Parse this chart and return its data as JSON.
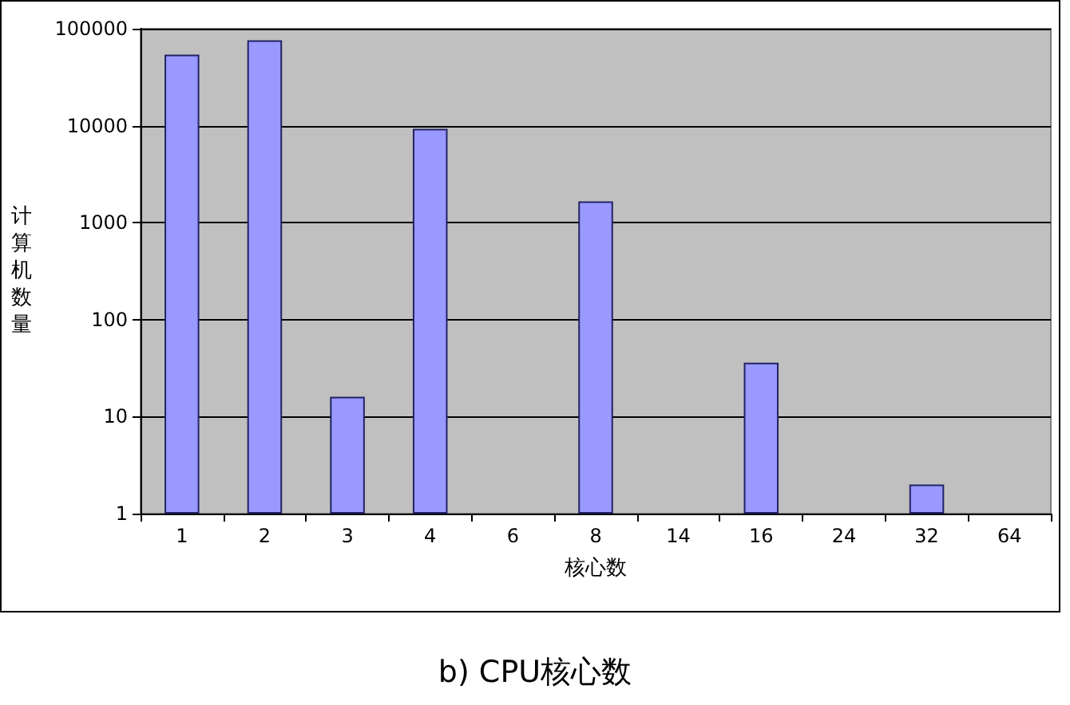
{
  "chart_data": {
    "type": "bar",
    "title": "b) CPU核心数",
    "xlabel": "核心数",
    "ylabel": "计算机数量",
    "categories": [
      "1",
      "2",
      "3",
      "4",
      "6",
      "8",
      "14",
      "16",
      "24",
      "32",
      "64"
    ],
    "values": [
      54000,
      76000,
      16,
      9300,
      null,
      1660,
      null,
      36,
      null,
      2,
      null
    ],
    "color": "#9999ff",
    "log": true,
    "ylim": [
      1,
      100000
    ],
    "yticks": [
      1,
      10,
      100,
      1000,
      10000,
      100000
    ],
    "grid": "y"
  }
}
